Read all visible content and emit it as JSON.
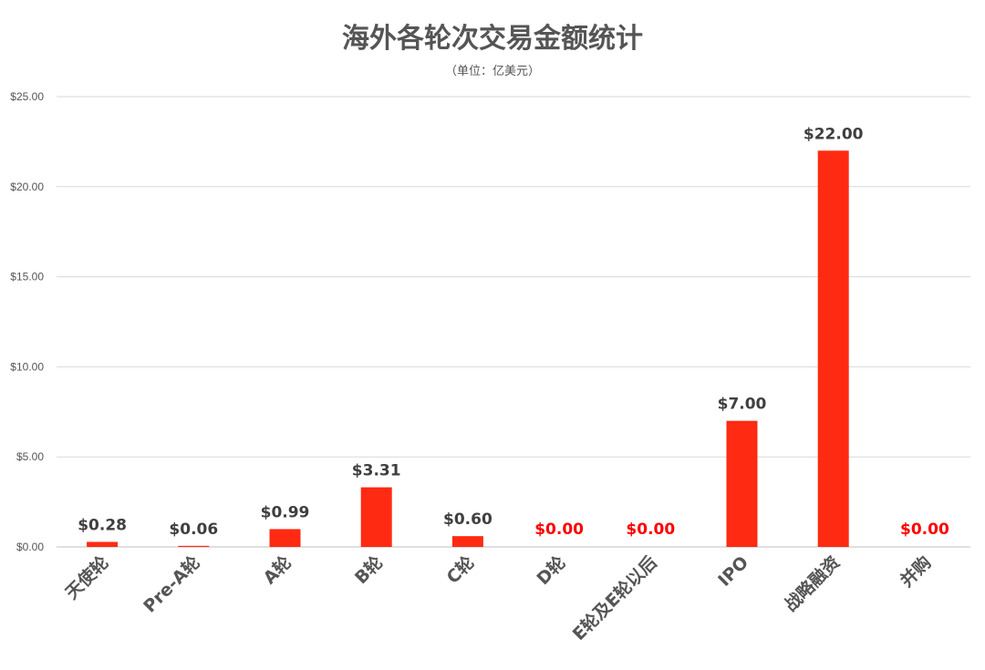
{
  "chart_data": {
    "type": "bar",
    "title": "海外各轮次交易金额统计",
    "subtitle": "（单位：亿美元）",
    "categories": [
      "天使轮",
      "Pre-A轮",
      "A轮",
      "B轮",
      "C轮",
      "D轮",
      "E轮及E轮以后",
      "IPO",
      "战略融资",
      "并购"
    ],
    "values": [
      0.28,
      0.06,
      0.99,
      3.31,
      0.6,
      0.0,
      0.0,
      7.0,
      22.0,
      0.0
    ],
    "data_labels": [
      "$0.28",
      "$0.06",
      "$0.99",
      "$3.31",
      "$0.60",
      "$0.00",
      "$0.00",
      "$7.00",
      "$22.00",
      "$0.00"
    ],
    "ylim": [
      0,
      25
    ],
    "yticks": [
      0,
      5,
      10,
      15,
      20,
      25
    ],
    "ytick_labels": [
      "$0.00",
      "$5.00",
      "$10.00",
      "$15.00",
      "$20.00",
      "$25.00"
    ],
    "xlabel": "",
    "ylabel": "",
    "grid": true,
    "legend": "none",
    "colors": {
      "bar": "#ff2a12",
      "label": "#3f3f3f",
      "zero_label": "#ff0000",
      "grid": "#d9d9d9"
    }
  }
}
